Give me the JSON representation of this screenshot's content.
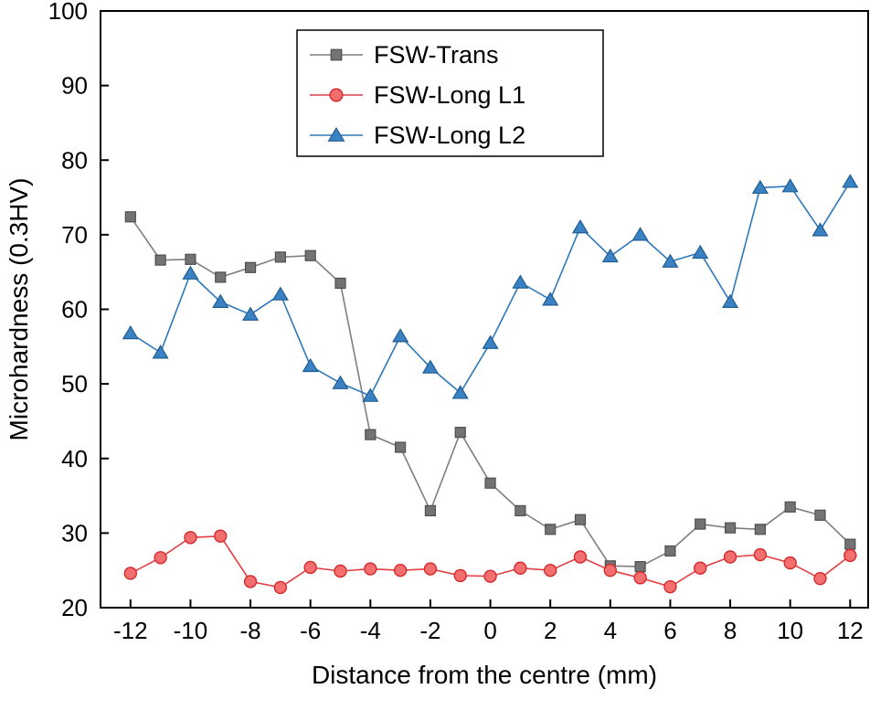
{
  "chart_data": {
    "type": "line",
    "title": "",
    "xlabel": "Distance from the centre (mm)",
    "ylabel": "Microhardness (0.3HV)",
    "xlim": [
      -13,
      12.6
    ],
    "ylim": [
      20,
      100
    ],
    "xticks": [
      -12,
      -10,
      -8,
      -6,
      -4,
      -2,
      0,
      2,
      4,
      6,
      8,
      10,
      12
    ],
    "yticks": [
      20,
      30,
      40,
      50,
      60,
      70,
      80,
      90,
      100
    ],
    "grid": false,
    "legend_position": "top-center",
    "x": [
      -12,
      -11,
      -10,
      -9,
      -8,
      -7,
      -6,
      -5,
      -4,
      -3,
      -2,
      -1,
      0,
      1,
      2,
      3,
      4,
      5,
      6,
      7,
      8,
      9,
      10,
      11,
      12
    ],
    "series": [
      {
        "name": "FSW-Trans",
        "marker": "square",
        "line_color": "#7f7f7f",
        "marker_fill": "#737373",
        "marker_stroke": "#4f4f4f",
        "values": [
          72.4,
          66.6,
          66.7,
          64.3,
          65.6,
          67.0,
          67.2,
          63.5,
          43.2,
          41.5,
          33.0,
          43.5,
          36.7,
          33.0,
          30.5,
          31.8,
          25.6,
          25.5,
          27.6,
          31.2,
          30.7,
          30.5,
          33.5,
          32.4,
          28.5
        ]
      },
      {
        "name": "FSW-Long L1",
        "marker": "circle",
        "line_color": "#e43d40",
        "marker_fill": "#f36f6f",
        "marker_stroke": "#d42a2c",
        "values": [
          24.6,
          26.7,
          29.4,
          29.6,
          23.5,
          22.7,
          25.4,
          24.9,
          25.2,
          25.0,
          25.2,
          24.3,
          24.2,
          25.3,
          25.0,
          26.8,
          25.0,
          24.0,
          22.8,
          25.3,
          26.8,
          27.1,
          26.0,
          23.9,
          27.0
        ]
      },
      {
        "name": "FSW-Long L2",
        "marker": "triangle",
        "line_color": "#2e78ba",
        "marker_fill": "#3a82c4",
        "marker_stroke": "#1f5d92",
        "values": [
          56.8,
          54.2,
          64.8,
          61.0,
          59.3,
          62.0,
          52.4,
          50.1,
          48.4,
          56.4,
          52.2,
          48.8,
          55.5,
          63.6,
          61.3,
          71.0,
          67.1,
          70.0,
          66.4,
          67.6,
          61.0,
          76.3,
          76.5,
          70.6,
          77.1
        ]
      }
    ]
  }
}
